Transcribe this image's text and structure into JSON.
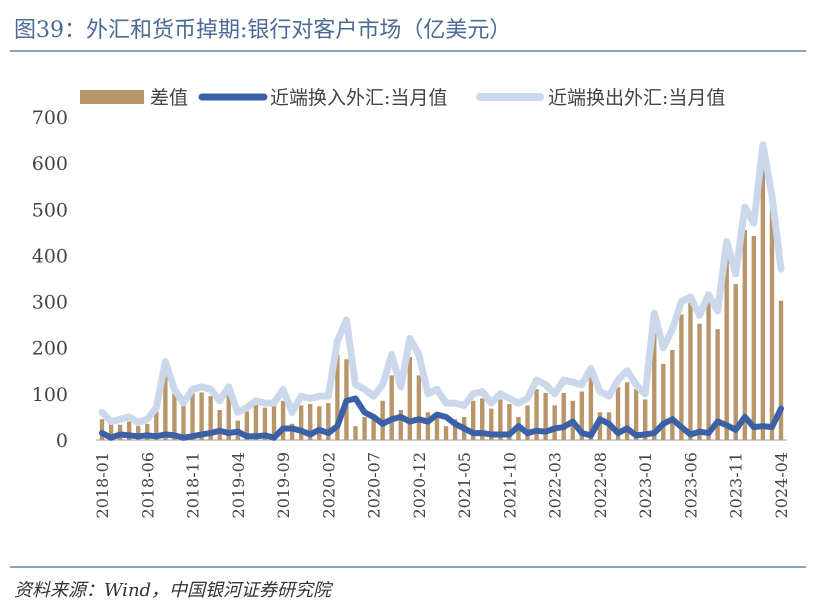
{
  "title": "图39：外汇和货币掉期:银行对客户市场（亿美元）",
  "source": "资料来源：Wind，中国银河证券研究院",
  "chart_data": {
    "type": "bar+line",
    "title": "图39：外汇和货币掉期:银行对客户市场（亿美元）",
    "ylim": [
      0,
      700
    ],
    "yticks": [
      0,
      100,
      200,
      300,
      400,
      500,
      600,
      700
    ],
    "x_start": "2018-01",
    "x_end": "2024-04",
    "xtick_labels": [
      "2018-01",
      "2018-06",
      "2018-11",
      "2019-04",
      "2019-09",
      "2020-02",
      "2020-07",
      "2020-12",
      "2021-05",
      "2021-10",
      "2022-03",
      "2022-08",
      "2023-01",
      "2023-06",
      "2023-11",
      "2024-04"
    ],
    "legend_position": "top",
    "grid": false,
    "series": [
      {
        "name": "差值",
        "kind": "bar",
        "color": "#B8966A",
        "values": [
          45,
          35,
          33,
          40,
          30,
          35,
          62,
          158,
          100,
          75,
          102,
          103,
          95,
          65,
          100,
          42,
          62,
          77,
          70,
          75,
          85,
          35,
          75,
          78,
          73,
          80,
          185,
          175,
          30,
          50,
          45,
          85,
          140,
          65,
          180,
          140,
          60,
          55,
          30,
          45,
          50,
          85,
          90,
          68,
          88,
          78,
          50,
          75,
          110,
          102,
          75,
          102,
          85,
          105,
          145,
          60,
          60,
          115,
          125,
          110,
          88,
          260,
          165,
          195,
          272,
          298,
          252,
          300,
          240,
          398,
          338,
          455,
          442,
          610,
          502,
          302
        ]
      },
      {
        "name": "近端换入外汇:当月值",
        "kind": "line",
        "color": "#3A60A8",
        "values": [
          15,
          5,
          12,
          10,
          8,
          10,
          8,
          12,
          10,
          5,
          8,
          12,
          15,
          20,
          15,
          18,
          8,
          8,
          10,
          5,
          25,
          25,
          20,
          12,
          22,
          15,
          30,
          85,
          90,
          60,
          50,
          35,
          45,
          50,
          40,
          45,
          40,
          55,
          50,
          35,
          25,
          15,
          15,
          12,
          12,
          12,
          30,
          15,
          20,
          18,
          25,
          28,
          40,
          15,
          10,
          45,
          35,
          15,
          25,
          10,
          12,
          15,
          35,
          45,
          28,
          12,
          18,
          15,
          40,
          32,
          22,
          50,
          28,
          30,
          28,
          68
        ]
      },
      {
        "name": "近端换出外汇:当月值",
        "kind": "line",
        "color": "#CBD8EC",
        "values": [
          60,
          40,
          45,
          50,
          38,
          45,
          70,
          170,
          110,
          80,
          110,
          115,
          110,
          85,
          115,
          60,
          70,
          85,
          80,
          80,
          110,
          60,
          95,
          90,
          95,
          95,
          215,
          260,
          120,
          110,
          95,
          120,
          185,
          115,
          220,
          185,
          100,
          110,
          80,
          80,
          75,
          100,
          105,
          80,
          100,
          90,
          80,
          90,
          130,
          120,
          100,
          130,
          125,
          120,
          155,
          105,
          95,
          130,
          150,
          120,
          100,
          275,
          200,
          240,
          300,
          310,
          270,
          315,
          280,
          430,
          360,
          505,
          470,
          640,
          530,
          370
        ]
      }
    ]
  }
}
